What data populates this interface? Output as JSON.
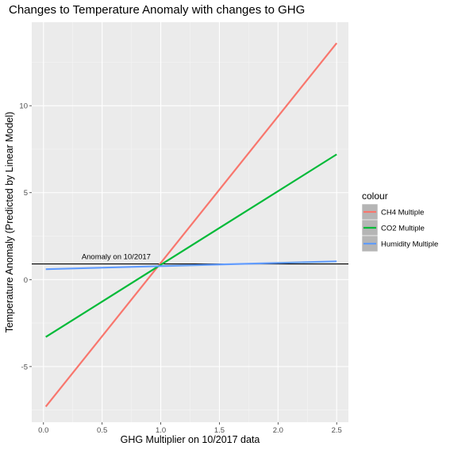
{
  "chart_data": {
    "type": "line",
    "title": "Changes to Temperature Anomaly with changes to GHG",
    "xlabel": "GHG Multiplier on 10/2017 data",
    "ylabel": "Temperature Anomaly (Predicted by Linear Model)",
    "xlim": [
      -0.1,
      2.6
    ],
    "ylim": [
      -8.2,
      14.8
    ],
    "x_ticks": [
      0.0,
      0.5,
      1.0,
      1.5,
      2.0,
      2.5
    ],
    "x_tick_labels": [
      "0.0",
      "0.5",
      "1.0",
      "1.5",
      "2.0",
      "2.5"
    ],
    "y_ticks": [
      -5,
      0,
      5,
      10
    ],
    "y_tick_labels": [
      "-5",
      "0",
      "5",
      "10"
    ],
    "grid": true,
    "legend": {
      "title": "colour",
      "placement": "right",
      "entries": [
        "CH4 Multiple",
        "CO2 Multiple",
        "Humidity Multiple"
      ]
    },
    "series": [
      {
        "name": "CH4 Multiple",
        "color": "#F8766D",
        "x": [
          0.02,
          2.5
        ],
        "y": [
          -7.3,
          13.6
        ]
      },
      {
        "name": "CO2 Multiple",
        "color": "#00BA38",
        "x": [
          0.02,
          2.5
        ],
        "y": [
          -3.3,
          7.2
        ]
      },
      {
        "name": "Humidity Multiple",
        "color": "#619CFF",
        "x": [
          0.02,
          2.5
        ],
        "y": [
          0.6,
          1.05
        ]
      }
    ],
    "reference_line": {
      "y": 0.9,
      "label": "Anomaly on 10/2017",
      "label_x": 0.62,
      "color": "#000000"
    }
  }
}
